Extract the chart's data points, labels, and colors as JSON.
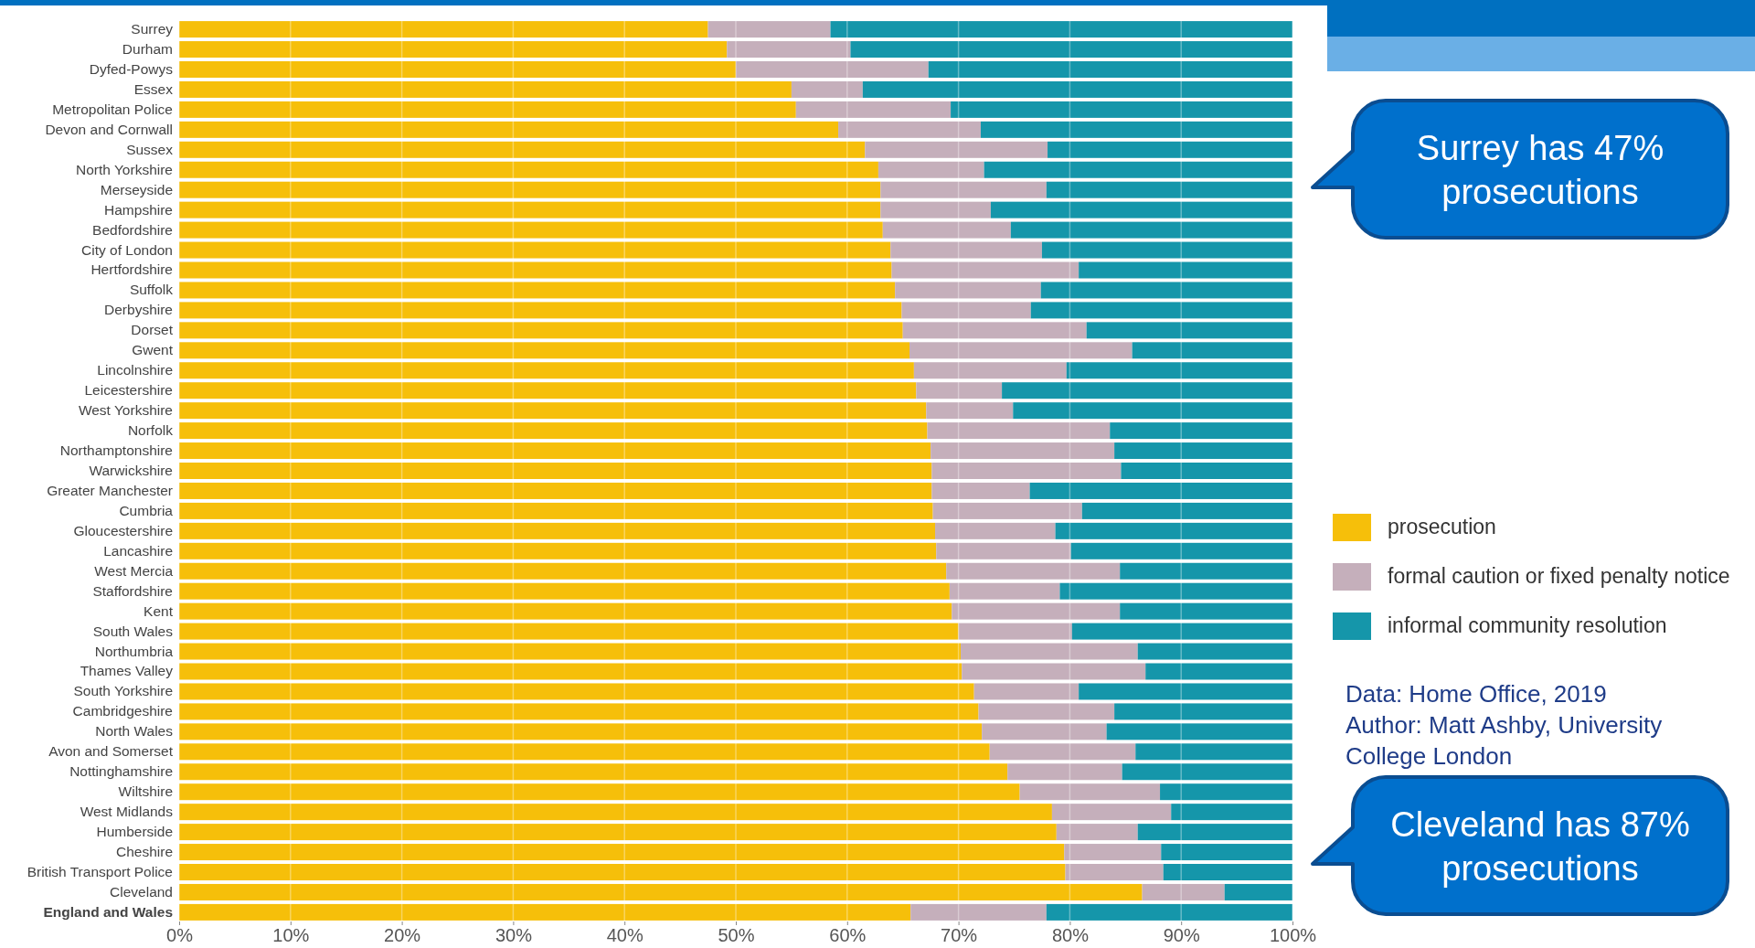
{
  "chart_data": {
    "type": "bar",
    "orientation": "horizontal",
    "stacked": true,
    "grid": "x",
    "legend": "right",
    "categories": [
      "Surrey",
      "Durham",
      "Dyfed-Powys",
      "Essex",
      "Metropolitan Police",
      "Devon and Cornwall",
      "Sussex",
      "North Yorkshire",
      "Merseyside",
      "Hampshire",
      "Bedfordshire",
      "City of London",
      "Hertfordshire",
      "Suffolk",
      "Derbyshire",
      "Dorset",
      "Gwent",
      "Lincolnshire",
      "Leicestershire",
      "West Yorkshire",
      "Norfolk",
      "Northamptonshire",
      "Warwickshire",
      "Greater Manchester",
      "Cumbria",
      "Gloucestershire",
      "Lancashire",
      "West Mercia",
      "Staffordshire",
      "Kent",
      "South Wales",
      "Northumbria",
      "Thames Valley",
      "South Yorkshire",
      "Cambridgeshire",
      "North Wales",
      "Avon and Somerset",
      "Nottinghamshire",
      "Wiltshire",
      "West Midlands",
      "Humberside",
      "Cheshire",
      "British Transport Police",
      "Cleveland",
      "England and Wales"
    ],
    "series": [
      {
        "name": "prosecution",
        "color": "#f6bf0a",
        "values": [
          47.5,
          49.2,
          50,
          55,
          55.4,
          59.2,
          61.6,
          62.8,
          63,
          63,
          63.2,
          63.9,
          64,
          64.3,
          64.9,
          65,
          65.6,
          66,
          66.2,
          67.1,
          67.2,
          67.5,
          67.6,
          67.6,
          67.7,
          67.9,
          68,
          68.9,
          69.2,
          69.4,
          70,
          70.2,
          70.3,
          71.4,
          71.8,
          72.1,
          72.8,
          74.4,
          75.5,
          78.4,
          78.8,
          79.5,
          79.6,
          86.5,
          65.7
        ]
      },
      {
        "name": "formal caution or fixed penalty notice",
        "color": "#c5afbb",
        "values": [
          11,
          11.1,
          17.3,
          6.4,
          13.9,
          12.8,
          16.4,
          9.5,
          14.9,
          9.9,
          11.5,
          13.6,
          16.8,
          13.1,
          11.6,
          16.5,
          20,
          13.7,
          7.7,
          7.8,
          16.4,
          16.5,
          17,
          8.8,
          13.4,
          10.8,
          12.1,
          15.6,
          9.9,
          15.1,
          10.2,
          15.9,
          16.5,
          9.4,
          12.2,
          11.2,
          13.1,
          10.3,
          12.6,
          10.7,
          7.3,
          8.7,
          8.8,
          7.4,
          12.2
        ]
      },
      {
        "name": "informal community resolution",
        "color": "#1596aa",
        "values": [
          41.5,
          39.7,
          32.7,
          38.6,
          30.7,
          28,
          22,
          27.7,
          22.1,
          27.1,
          25.3,
          22.5,
          19.2,
          22.6,
          23.5,
          18.5,
          14.4,
          20.3,
          26.1,
          25.1,
          16.4,
          16,
          15.4,
          23.6,
          18.9,
          21.3,
          19.9,
          15.5,
          20.9,
          15.5,
          19.8,
          13.9,
          13.2,
          19.2,
          16,
          16.7,
          14.1,
          15.3,
          11.9,
          10.9,
          13.9,
          11.8,
          11.6,
          6.1,
          22.1
        ]
      }
    ],
    "xlim": [
      0,
      100
    ],
    "xticks": [
      {
        "value": 0,
        "label": "0%"
      },
      {
        "value": 10,
        "label": "10%"
      },
      {
        "value": 20,
        "label": "20%"
      },
      {
        "value": 30,
        "label": "30%"
      },
      {
        "value": 40,
        "label": "40%"
      },
      {
        "value": 50,
        "label": "50%"
      },
      {
        "value": 60,
        "label": "60%"
      },
      {
        "value": 70,
        "label": "70%"
      },
      {
        "value": 80,
        "label": "80%"
      },
      {
        "value": 90,
        "label": "90%"
      },
      {
        "value": 100,
        "label": "100%"
      }
    ],
    "annotations": [
      "Surrey has 47% prosecutions",
      "Cleveland has 87% prosecutions",
      "Data: Home Office, 2019",
      "Author: Matt Ashby, University College London"
    ]
  }
}
